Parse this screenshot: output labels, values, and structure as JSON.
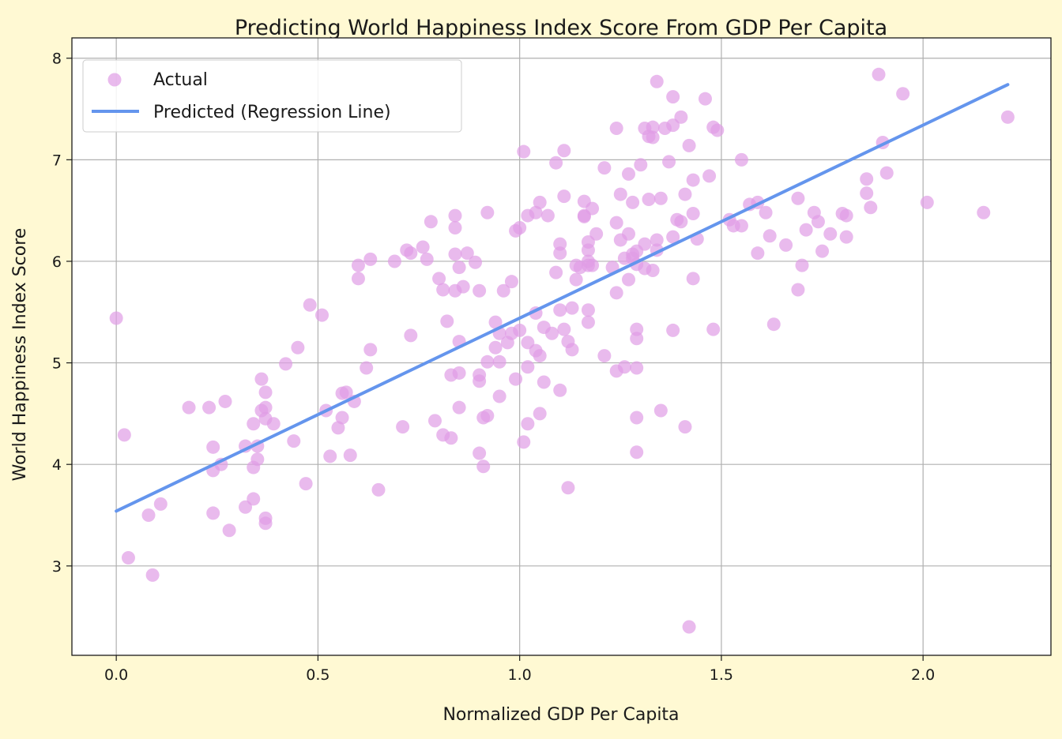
{
  "chart_data": {
    "type": "scatter",
    "title": "Predicting World Happiness Index Score From GDP Per Capita",
    "xlabel": "Normalized GDP Per Capita",
    "ylabel": "World Happiness Index Score",
    "xlim": [
      -0.11,
      2.317
    ],
    "ylim": [
      2.12,
      8.2
    ],
    "xticks": [
      0.0,
      0.5,
      1.0,
      1.5,
      2.0
    ],
    "xtick_labels": [
      "0.0",
      "0.5",
      "1.0",
      "1.5",
      "2.0"
    ],
    "yticks": [
      3,
      4,
      5,
      6,
      7,
      8
    ],
    "ytick_labels": [
      "3",
      "4",
      "5",
      "6",
      "7",
      "8"
    ],
    "grid": true,
    "legend_position": "top-left",
    "colors": {
      "actual": "#df9ce6",
      "predicted": "#6495ed",
      "background": "#fff9d3",
      "plot_background": "#ffffff"
    },
    "series": [
      {
        "name": "Actual",
        "kind": "scatter",
        "points": [
          [
            0.0,
            5.44
          ],
          [
            0.02,
            4.29
          ],
          [
            0.03,
            3.08
          ],
          [
            0.08,
            3.5
          ],
          [
            0.09,
            2.91
          ],
          [
            0.11,
            3.61
          ],
          [
            0.18,
            4.56
          ],
          [
            0.23,
            4.56
          ],
          [
            0.24,
            4.17
          ],
          [
            0.24,
            3.52
          ],
          [
            0.24,
            3.94
          ],
          [
            0.26,
            4.0
          ],
          [
            0.27,
            4.62
          ],
          [
            0.28,
            3.35
          ],
          [
            0.32,
            4.18
          ],
          [
            0.32,
            3.58
          ],
          [
            0.34,
            4.4
          ],
          [
            0.34,
            3.66
          ],
          [
            0.34,
            3.97
          ],
          [
            0.35,
            4.18
          ],
          [
            0.35,
            4.05
          ],
          [
            0.36,
            4.53
          ],
          [
            0.36,
            4.84
          ],
          [
            0.37,
            4.71
          ],
          [
            0.37,
            4.56
          ],
          [
            0.37,
            3.42
          ],
          [
            0.37,
            3.47
          ],
          [
            0.37,
            4.45
          ],
          [
            0.39,
            4.4
          ],
          [
            0.42,
            4.99
          ],
          [
            0.44,
            4.23
          ],
          [
            0.45,
            5.15
          ],
          [
            0.47,
            3.81
          ],
          [
            0.48,
            5.57
          ],
          [
            0.51,
            5.47
          ],
          [
            0.52,
            4.53
          ],
          [
            0.53,
            4.08
          ],
          [
            0.55,
            4.36
          ],
          [
            0.56,
            4.46
          ],
          [
            0.56,
            4.7
          ],
          [
            0.57,
            4.71
          ],
          [
            0.58,
            4.09
          ],
          [
            0.59,
            4.62
          ],
          [
            0.62,
            4.95
          ],
          [
            0.63,
            5.13
          ],
          [
            0.63,
            6.02
          ],
          [
            0.6,
            5.96
          ],
          [
            0.6,
            5.83
          ],
          [
            0.65,
            3.75
          ],
          [
            0.69,
            6.0
          ],
          [
            0.71,
            4.37
          ],
          [
            0.72,
            6.11
          ],
          [
            0.73,
            5.27
          ],
          [
            0.73,
            6.08
          ],
          [
            0.76,
            6.14
          ],
          [
            0.77,
            6.02
          ],
          [
            0.78,
            6.39
          ],
          [
            0.79,
            4.43
          ],
          [
            0.8,
            5.83
          ],
          [
            0.81,
            5.72
          ],
          [
            0.81,
            4.29
          ],
          [
            0.82,
            5.41
          ],
          [
            0.83,
            4.88
          ],
          [
            0.83,
            4.26
          ],
          [
            0.84,
            5.71
          ],
          [
            0.84,
            6.33
          ],
          [
            0.84,
            6.45
          ],
          [
            0.84,
            6.07
          ],
          [
            0.85,
            4.56
          ],
          [
            0.85,
            4.9
          ],
          [
            0.85,
            5.21
          ],
          [
            0.85,
            5.94
          ],
          [
            0.86,
            5.75
          ],
          [
            0.87,
            6.08
          ],
          [
            0.89,
            5.99
          ],
          [
            0.9,
            5.71
          ],
          [
            0.9,
            4.11
          ],
          [
            0.9,
            4.88
          ],
          [
            0.9,
            4.82
          ],
          [
            0.91,
            3.98
          ],
          [
            0.91,
            4.46
          ],
          [
            0.92,
            5.01
          ],
          [
            0.92,
            6.48
          ],
          [
            0.92,
            4.48
          ],
          [
            0.94,
            5.15
          ],
          [
            0.94,
            5.4
          ],
          [
            0.95,
            5.01
          ],
          [
            0.95,
            5.29
          ],
          [
            0.95,
            4.67
          ],
          [
            0.96,
            5.71
          ],
          [
            0.97,
            5.2
          ],
          [
            0.98,
            5.29
          ],
          [
            0.98,
            5.8
          ],
          [
            0.99,
            4.84
          ],
          [
            0.99,
            6.3
          ],
          [
            1.0,
            6.33
          ],
          [
            1.01,
            7.08
          ],
          [
            1.0,
            5.32
          ],
          [
            1.01,
            4.22
          ],
          [
            1.02,
            5.2
          ],
          [
            1.02,
            4.96
          ],
          [
            1.02,
            4.4
          ],
          [
            1.02,
            6.45
          ],
          [
            1.04,
            6.48
          ],
          [
            1.04,
            5.49
          ],
          [
            1.04,
            5.12
          ],
          [
            1.05,
            5.07
          ],
          [
            1.05,
            6.58
          ],
          [
            1.05,
            4.5
          ],
          [
            1.06,
            4.81
          ],
          [
            1.06,
            5.35
          ],
          [
            1.07,
            6.45
          ],
          [
            1.08,
            5.29
          ],
          [
            1.09,
            5.89
          ],
          [
            1.09,
            6.97
          ],
          [
            1.1,
            6.08
          ],
          [
            1.1,
            4.73
          ],
          [
            1.1,
            6.17
          ],
          [
            1.1,
            5.52
          ],
          [
            1.11,
            7.09
          ],
          [
            1.11,
            6.64
          ],
          [
            1.11,
            5.33
          ],
          [
            1.12,
            5.21
          ],
          [
            1.12,
            3.77
          ],
          [
            1.13,
            5.13
          ],
          [
            1.13,
            5.54
          ],
          [
            1.14,
            5.96
          ],
          [
            1.14,
            5.82
          ],
          [
            1.15,
            5.94
          ],
          [
            1.16,
            6.59
          ],
          [
            1.16,
            6.45
          ],
          [
            1.16,
            6.44
          ],
          [
            1.17,
            5.52
          ],
          [
            1.17,
            5.4
          ],
          [
            1.17,
            6.19
          ],
          [
            1.17,
            6.0
          ],
          [
            1.17,
            6.11
          ],
          [
            1.17,
            5.96
          ],
          [
            1.18,
            6.52
          ],
          [
            1.18,
            5.96
          ],
          [
            1.19,
            6.27
          ],
          [
            1.21,
            5.07
          ],
          [
            1.21,
            6.92
          ],
          [
            1.23,
            5.94
          ],
          [
            1.24,
            4.92
          ],
          [
            1.24,
            6.38
          ],
          [
            1.24,
            5.69
          ],
          [
            1.24,
            7.31
          ],
          [
            1.25,
            6.21
          ],
          [
            1.25,
            6.66
          ],
          [
            1.26,
            4.96
          ],
          [
            1.26,
            6.03
          ],
          [
            1.27,
            5.82
          ],
          [
            1.27,
            6.86
          ],
          [
            1.27,
            6.27
          ],
          [
            1.28,
            6.58
          ],
          [
            1.28,
            6.03
          ],
          [
            1.28,
            6.07
          ],
          [
            1.29,
            4.95
          ],
          [
            1.29,
            5.33
          ],
          [
            1.29,
            6.1
          ],
          [
            1.29,
            4.46
          ],
          [
            1.29,
            4.12
          ],
          [
            1.29,
            5.24
          ],
          [
            1.29,
            5.97
          ],
          [
            1.3,
            6.95
          ],
          [
            1.31,
            6.17
          ],
          [
            1.31,
            7.31
          ],
          [
            1.31,
            5.93
          ],
          [
            1.32,
            7.23
          ],
          [
            1.32,
            6.61
          ],
          [
            1.33,
            5.91
          ],
          [
            1.33,
            7.32
          ],
          [
            1.33,
            7.22
          ],
          [
            1.34,
            7.77
          ],
          [
            1.34,
            6.11
          ],
          [
            1.34,
            6.21
          ],
          [
            1.35,
            4.53
          ],
          [
            1.35,
            6.62
          ],
          [
            1.36,
            7.31
          ],
          [
            1.37,
            6.98
          ],
          [
            1.38,
            6.24
          ],
          [
            1.38,
            7.62
          ],
          [
            1.38,
            5.32
          ],
          [
            1.38,
            7.34
          ],
          [
            1.39,
            6.41
          ],
          [
            1.4,
            6.39
          ],
          [
            1.4,
            7.42
          ],
          [
            1.41,
            6.66
          ],
          [
            1.41,
            4.37
          ],
          [
            1.42,
            2.4
          ],
          [
            1.42,
            7.14
          ],
          [
            1.43,
            5.83
          ],
          [
            1.43,
            6.47
          ],
          [
            1.43,
            6.8
          ],
          [
            1.44,
            6.22
          ],
          [
            1.46,
            7.6
          ],
          [
            1.47,
            6.84
          ],
          [
            1.48,
            5.33
          ],
          [
            1.48,
            7.32
          ],
          [
            1.49,
            7.29
          ],
          [
            1.52,
            6.41
          ],
          [
            1.53,
            6.35
          ],
          [
            1.55,
            7.0
          ],
          [
            1.55,
            6.35
          ],
          [
            1.57,
            6.56
          ],
          [
            1.59,
            6.58
          ],
          [
            1.59,
            6.08
          ],
          [
            1.61,
            6.48
          ],
          [
            1.62,
            6.25
          ],
          [
            1.63,
            5.38
          ],
          [
            1.66,
            6.16
          ],
          [
            1.69,
            5.72
          ],
          [
            1.69,
            6.62
          ],
          [
            1.7,
            5.96
          ],
          [
            1.71,
            6.31
          ],
          [
            1.73,
            6.48
          ],
          [
            1.74,
            6.39
          ],
          [
            1.75,
            6.1
          ],
          [
            1.77,
            6.27
          ],
          [
            1.8,
            6.47
          ],
          [
            1.81,
            6.24
          ],
          [
            1.81,
            6.45
          ],
          [
            1.86,
            6.81
          ],
          [
            1.86,
            6.67
          ],
          [
            1.87,
            6.53
          ],
          [
            1.89,
            7.84
          ],
          [
            1.9,
            7.17
          ],
          [
            1.91,
            6.87
          ],
          [
            1.95,
            7.65
          ],
          [
            2.01,
            6.58
          ],
          [
            2.15,
            6.48
          ],
          [
            2.21,
            7.42
          ]
        ]
      },
      {
        "name": "Predicted (Regression Line)",
        "kind": "line",
        "points": [
          [
            0.0,
            3.54
          ],
          [
            2.21,
            7.74
          ]
        ]
      }
    ]
  }
}
